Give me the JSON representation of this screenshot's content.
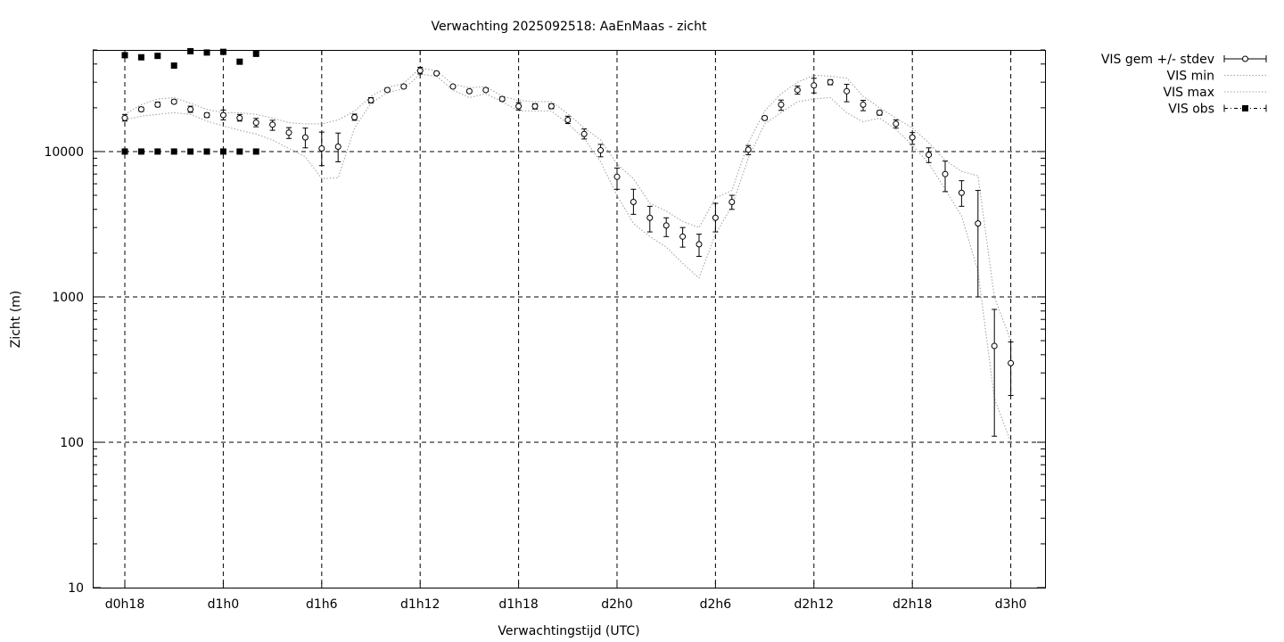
{
  "chart_data": {
    "type": "line",
    "title": "Verwachting 2025092518: AaEnMaas - zicht",
    "xlabel": "Verwachtingstijd (UTC)",
    "ylabel": "Zicht (m)",
    "yscale": "log",
    "ylim": [
      10,
      50000
    ],
    "xlim_hours": [
      -1,
      28
    ],
    "grid": true,
    "legend_position": "outside-top-right",
    "x_ticks": [
      {
        "label": "d0h18",
        "hour": 0
      },
      {
        "label": "d1h0",
        "hour": 6
      },
      {
        "label": "d1h6",
        "hour": 12
      },
      {
        "label": "d1h12",
        "hour": 18
      },
      {
        "label": "d1h18",
        "hour": 24
      },
      {
        "label": "d2h0",
        "hour": 30
      },
      {
        "label": "d2h6",
        "hour": 36
      },
      {
        "label": "d2h12",
        "hour": 42
      },
      {
        "label": "d2h18",
        "hour": 48
      },
      {
        "label": "d3h0",
        "hour": 54
      }
    ],
    "y_ticks": [
      {
        "label": "10",
        "value": 10
      },
      {
        "label": "100",
        "value": 100
      },
      {
        "label": "1000",
        "value": 1000
      },
      {
        "label": "10000",
        "value": 10000
      }
    ],
    "series": [
      {
        "name": "VIS gem +/- stdev",
        "kind": "errorbar",
        "color": "#000000",
        "x": [
          0,
          1,
          2,
          3,
          4,
          5,
          6,
          7,
          8,
          9,
          10,
          11,
          12,
          13,
          14,
          15,
          16,
          17,
          18,
          19,
          20,
          21,
          22,
          23,
          24,
          25,
          26,
          27,
          28,
          29,
          30,
          31,
          32,
          33,
          34,
          35,
          36,
          37,
          38,
          39,
          40,
          41,
          42,
          43,
          44,
          45,
          46,
          47,
          48,
          49,
          50,
          51,
          52,
          53,
          54
        ],
        "mean": [
          17000,
          19500,
          21000,
          22000,
          19500,
          17800,
          17800,
          17000,
          15800,
          15300,
          13500,
          12500,
          10500,
          10800,
          17200,
          22500,
          26500,
          28000,
          36000,
          34500,
          28000,
          26000,
          26500,
          23000,
          20500,
          20500,
          20500,
          16500,
          13200,
          10200,
          6700,
          4500,
          3500,
          3100,
          2600,
          2300,
          3500,
          4500,
          10300,
          17000,
          21000,
          26500,
          28500,
          30000,
          26000,
          21000,
          18500,
          15500,
          12500,
          9500,
          7000,
          5200,
          3200,
          460,
          350
        ],
        "low": [
          16200,
          18900,
          20300,
          21400,
          18600,
          17200,
          16500,
          16200,
          14800,
          14000,
          12300,
          10600,
          8000,
          8500,
          16400,
          21600,
          25800,
          27300,
          34200,
          33800,
          27400,
          25300,
          25900,
          22300,
          19300,
          19600,
          19700,
          15600,
          12200,
          9200,
          5500,
          3700,
          2800,
          2600,
          2200,
          1900,
          2800,
          4000,
          9500,
          16500,
          19200,
          24800,
          25300,
          28800,
          22000,
          19100,
          17800,
          14500,
          11200,
          8400,
          5300,
          4200,
          1000,
          110,
          210
        ],
        "high": [
          18000,
          20200,
          21900,
          22700,
          20500,
          18400,
          19300,
          18000,
          16900,
          16400,
          14600,
          14500,
          13600,
          13400,
          18100,
          23500,
          27300,
          28800,
          38000,
          35300,
          28600,
          26700,
          27200,
          23700,
          21700,
          21300,
          21300,
          17500,
          14300,
          11200,
          7700,
          5500,
          4200,
          3500,
          3000,
          2700,
          4400,
          5000,
          11000,
          17500,
          22600,
          28200,
          31900,
          31200,
          29000,
          22500,
          19100,
          16500,
          13500,
          10600,
          8600,
          6300,
          5400,
          820,
          490
        ]
      },
      {
        "name": "VIS min",
        "kind": "line",
        "color": "#a6a6a6",
        "x": [
          0,
          1,
          2,
          3,
          4,
          5,
          6,
          7,
          8,
          9,
          10,
          11,
          12,
          13,
          14,
          15,
          16,
          17,
          18,
          19,
          20,
          21,
          22,
          23,
          24,
          25,
          26,
          27,
          28,
          29,
          30,
          31,
          32,
          33,
          34,
          35,
          36,
          37,
          38,
          39,
          40,
          41,
          42,
          43,
          44,
          45,
          46,
          47,
          48,
          49,
          50,
          51,
          52,
          53,
          54
        ],
        "values": [
          16500,
          17500,
          18000,
          18500,
          18000,
          16200,
          15000,
          14000,
          13200,
          12000,
          10500,
          9200,
          6500,
          6600,
          14500,
          21500,
          25500,
          27000,
          34000,
          33000,
          26500,
          23500,
          25000,
          22000,
          19000,
          19000,
          19000,
          15500,
          12300,
          8500,
          5000,
          3200,
          2600,
          2200,
          1700,
          1350,
          2700,
          4200,
          9000,
          15500,
          18500,
          22000,
          23000,
          23500,
          18500,
          16000,
          17000,
          14200,
          11000,
          8300,
          5500,
          3600,
          1500,
          200,
          100
        ]
      },
      {
        "name": "VIS max",
        "kind": "line",
        "color": "#a6a6a6",
        "x": [
          0,
          1,
          2,
          3,
          4,
          5,
          6,
          7,
          8,
          9,
          10,
          11,
          12,
          13,
          14,
          15,
          16,
          17,
          18,
          19,
          20,
          21,
          22,
          23,
          24,
          25,
          26,
          27,
          28,
          29,
          30,
          31,
          32,
          33,
          34,
          35,
          36,
          37,
          38,
          39,
          40,
          41,
          42,
          43,
          44,
          45,
          46,
          47,
          48,
          49,
          50,
          51,
          52,
          53,
          54
        ],
        "values": [
          18000,
          21000,
          23000,
          23500,
          21500,
          19500,
          18500,
          18500,
          18000,
          17000,
          15800,
          15500,
          15500,
          16500,
          19000,
          24000,
          27500,
          29500,
          37500,
          36000,
          29000,
          27500,
          28000,
          24000,
          22500,
          22000,
          22000,
          18200,
          14500,
          12000,
          8200,
          6500,
          4400,
          3900,
          3300,
          3000,
          4800,
          5400,
          11500,
          19000,
          25000,
          30000,
          33500,
          33000,
          32000,
          24000,
          20000,
          17000,
          14500,
          11500,
          8700,
          7300,
          6800,
          1000,
          500
        ]
      },
      {
        "name": "VIS obs",
        "kind": "marker",
        "color": "#000000",
        "x": [
          0,
          1,
          2,
          3,
          4,
          5,
          6,
          7,
          8,
          0,
          1,
          2,
          3,
          4,
          5,
          6,
          7,
          8
        ],
        "values": [
          46000,
          44500,
          45500,
          39000,
          49000,
          48000,
          48500,
          41500,
          47000,
          10000,
          10000,
          10000,
          10000,
          10000,
          10000,
          10000,
          10000,
          10000
        ]
      }
    ]
  }
}
